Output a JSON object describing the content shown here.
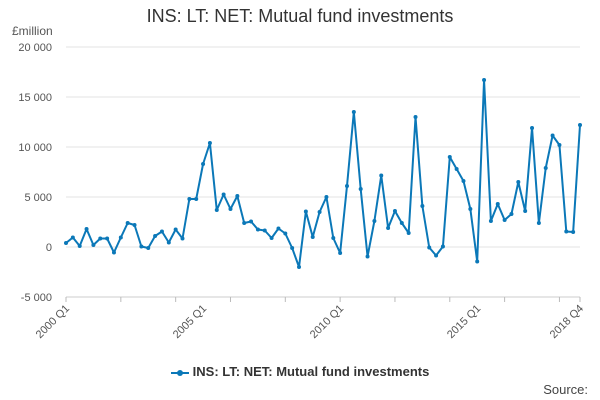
{
  "chart_data": {
    "type": "line",
    "title": "INS: LT: NET: Mutual fund investments",
    "ylabel": "£million",
    "ylim": [
      -5000,
      20000
    ],
    "yticks": [
      -5000,
      0,
      5000,
      10000,
      15000,
      20000
    ],
    "ytick_labels": [
      "-5 000",
      "0",
      "5 000",
      "10 000",
      "15 000",
      "20 000"
    ],
    "x_tick_labels": [
      "2000 Q1",
      "2005 Q1",
      "2010 Q1",
      "2015 Q1",
      "2018 Q4"
    ],
    "x_tick_indices": [
      0,
      20,
      40,
      60,
      75
    ],
    "grid": true,
    "legend_position": "bottom",
    "line_color": "#0b78b8",
    "series": [
      {
        "name": "INS: LT: NET: Mutual fund investments",
        "values": [
          400,
          950,
          100,
          1800,
          200,
          850,
          850,
          -550,
          950,
          2400,
          2200,
          50,
          -100,
          1100,
          1550,
          450,
          1750,
          850,
          4800,
          4800,
          8300,
          10400,
          3700,
          5250,
          3800,
          5100,
          2400,
          2550,
          1750,
          1650,
          900,
          1850,
          1350,
          -100,
          -2000,
          3550,
          1000,
          3500,
          5000,
          900,
          -600,
          6100,
          13500,
          5800,
          -950,
          2600,
          7150,
          1900,
          3600,
          2400,
          1400,
          13000,
          4100,
          -50,
          -850,
          50,
          9000,
          7800,
          6600,
          3800,
          -1450,
          16700,
          2600,
          4300,
          2700,
          3300,
          6500,
          3600,
          11900,
          2400,
          7900,
          11150,
          10200,
          1550,
          1500,
          12200
        ]
      }
    ]
  },
  "legend": {
    "label": "INS: LT: NET: Mutual fund investments"
  },
  "footer": {
    "source": "Source:"
  }
}
